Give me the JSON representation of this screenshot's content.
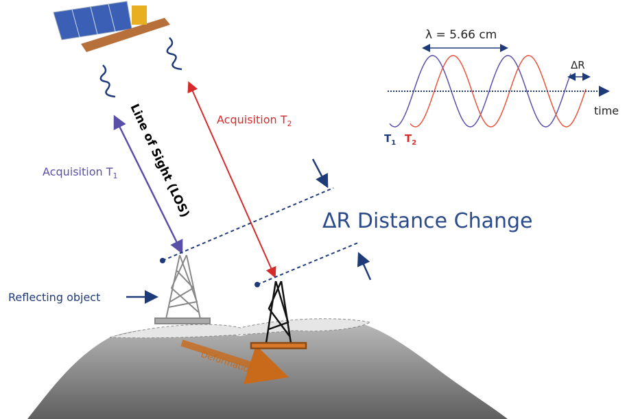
{
  "wave_inset": {
    "wavelength_label": "λ = 5.66 cm",
    "delta_label": "ΔR",
    "axis_label": "time",
    "t1": {
      "text": "T",
      "subscript": "1"
    },
    "t2": {
      "text": "T",
      "subscript": "2"
    }
  },
  "labels": {
    "acquisition_t1": {
      "text": "Acquisition T",
      "subscript": "1"
    },
    "acquisition_t2": {
      "text": "Acquisition T",
      "subscript": "2"
    },
    "line_of_sight": "Line of Sight (LOS)",
    "distance_change": "ΔR Distance Change",
    "reflecting_object": "Reflecting object",
    "deformation": "Deformation"
  }
}
